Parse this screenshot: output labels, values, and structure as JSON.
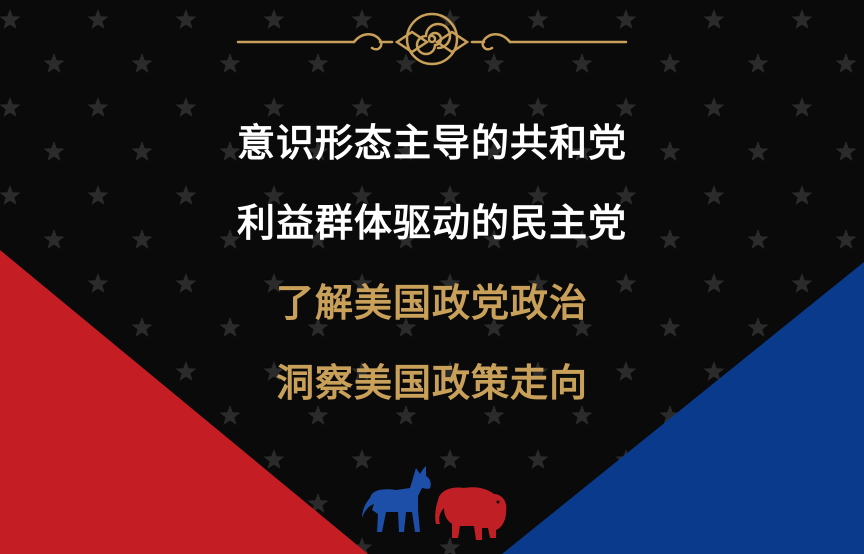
{
  "headline_lines": [
    {
      "text": "意识形态主导的共和党",
      "style": "white"
    },
    {
      "text": "利益群体驱动的民主党",
      "style": "white"
    },
    {
      "text": "了解美国政党政治",
      "style": "gold"
    },
    {
      "text": "洞察美国政策走向",
      "style": "gold"
    }
  ],
  "colors": {
    "background": "#0a0a0a",
    "star": "#2b2b2b",
    "red": "#c41e24",
    "blue": "#0a3a8c",
    "gold": "#c9a05a",
    "white": "#ffffff",
    "donkey": "#1d4ea8",
    "elephant": "#c11f26"
  },
  "icons": {
    "ornament": "scroll-ornament-icon",
    "donkey": "democratic-donkey-icon",
    "elephant": "republican-elephant-icon"
  }
}
